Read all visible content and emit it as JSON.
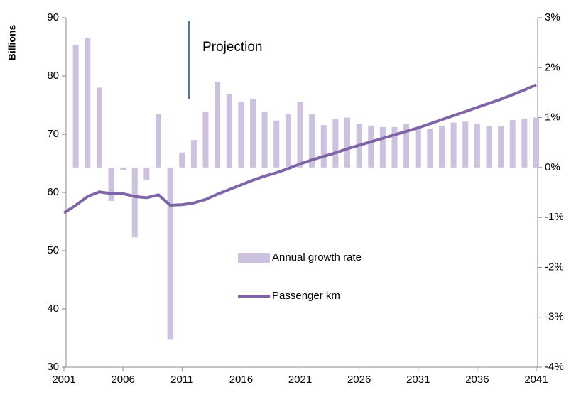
{
  "chart_data": {
    "type": "bar-line",
    "y_label": "Billions",
    "annotation": "Projection",
    "categories": [
      "2001",
      null,
      null,
      null,
      null,
      "2006",
      null,
      null,
      null,
      null,
      "2011",
      null,
      null,
      null,
      null,
      "2016",
      null,
      null,
      null,
      null,
      "2021",
      null,
      null,
      null,
      null,
      "2026",
      null,
      null,
      null,
      null,
      "2031",
      null,
      null,
      null,
      null,
      "2036",
      null,
      null,
      null,
      null,
      "2041"
    ],
    "series": [
      {
        "name": "Annual growth rate",
        "type": "bar",
        "axis": "y2",
        "color": "#ccc1de",
        "values": [
          null,
          2.46,
          2.6,
          1.6,
          -0.67,
          -0.05,
          -1.4,
          -0.25,
          1.07,
          -3.45,
          0.3,
          0.55,
          1.12,
          1.72,
          1.47,
          1.32,
          1.37,
          1.12,
          0.94,
          1.08,
          1.32,
          1.08,
          0.85,
          0.98,
          1.0,
          0.88,
          0.84,
          0.81,
          0.81,
          0.88,
          0.8,
          0.78,
          0.84,
          0.9,
          0.92,
          0.88,
          0.83,
          0.83,
          0.95,
          0.98,
          1.0
        ]
      },
      {
        "name": "Passenger km",
        "type": "line",
        "color": "#7f65a8",
        "values": [
          56.5,
          57.8,
          59.3,
          60.1,
          59.8,
          59.8,
          59.3,
          59.1,
          59.6,
          57.8,
          57.9,
          58.2,
          58.8,
          59.7,
          60.5,
          61.3,
          62.1,
          62.8,
          63.4,
          64.1,
          64.9,
          65.6,
          66.2,
          66.8,
          67.5,
          68.1,
          68.7,
          69.3,
          69.9,
          70.5,
          71.1,
          71.8,
          72.5,
          73.2,
          73.9,
          74.6,
          75.3,
          76.0,
          76.8,
          77.6,
          78.5
        ]
      }
    ],
    "ylim": [
      30,
      90
    ],
    "yticks": [
      30,
      40,
      50,
      60,
      70,
      80,
      90
    ],
    "y2lim": [
      -4,
      3
    ],
    "y2ticks": [
      {
        "value": -4,
        "label": "-4%"
      },
      {
        "value": -3,
        "label": "-3%"
      },
      {
        "value": -2,
        "label": "-2%"
      },
      {
        "value": -1,
        "label": "-1%"
      },
      {
        "value": 0,
        "label": "0%"
      },
      {
        "value": 1,
        "label": "1%"
      },
      {
        "value": 2,
        "label": "2%"
      },
      {
        "value": 3,
        "label": "3%"
      }
    ],
    "legend": "center"
  }
}
